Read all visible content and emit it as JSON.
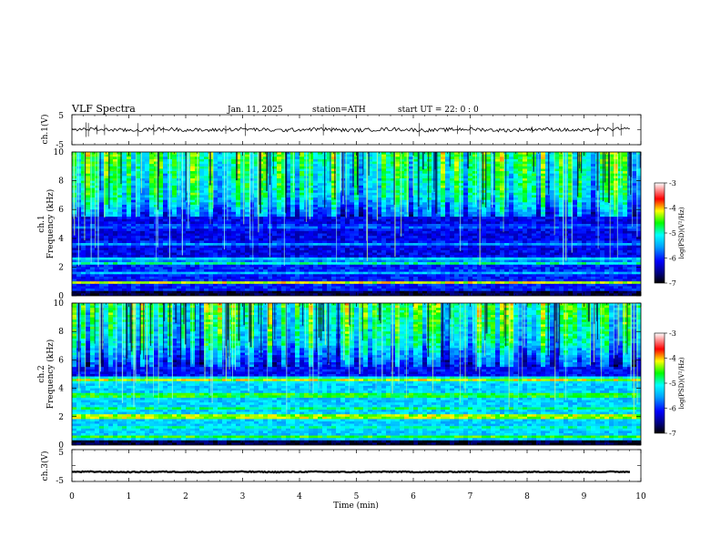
{
  "chart_data": {
    "type": "heatmap",
    "header": {
      "title": "VLF  Spectra",
      "date": "Jan. 11, 2025",
      "station": "station=ATH",
      "start_ut": "start  UT  =    22: 0   : 0"
    },
    "xlabel": "Time  (min)",
    "xlim": [
      0,
      10
    ],
    "x_ticks": [
      "0",
      "1",
      "2",
      "3",
      "4",
      "5",
      "6",
      "7",
      "8",
      "9",
      "10"
    ],
    "panels": [
      {
        "id": "ch1-waveform",
        "type": "line",
        "ylabel": "ch.1(V)",
        "ylim": [
          -5,
          5
        ],
        "y_ticks": [
          "5",
          "-5"
        ],
        "baseline": 0,
        "noise_amplitude": 0.6
      },
      {
        "id": "ch1-spectrogram",
        "type": "heatmap",
        "ylabel": "ch.1\nFrequency  (kHz)",
        "ylabel_line1": "ch.1",
        "ylabel_line2": "Frequency  (kHz)",
        "ylim": [
          0,
          10
        ],
        "y_ticks": [
          "0",
          "2",
          "4",
          "6",
          "8",
          "10"
        ],
        "colorbar": {
          "label": "log(PSD)(V²/Hz)",
          "range": [
            -7,
            -3
          ],
          "ticks": [
            "-3",
            "-4",
            "-5",
            "-6",
            "-7"
          ]
        },
        "notes": "Intense broadband noise above ~6 kHz with vertical sferic streaks; weak band near 3–5 kHz; horizontal lines near 0.5–2.5 kHz"
      },
      {
        "id": "ch2-spectrogram",
        "type": "heatmap",
        "ylabel": "ch.2\nFrequency  (kHz)",
        "ylabel_line1": "ch.2",
        "ylabel_line2": "Frequency  (kHz)",
        "ylim": [
          0,
          10
        ],
        "y_ticks": [
          "0",
          "2",
          "4",
          "6",
          "8",
          "10"
        ],
        "colorbar": {
          "label": "log(PSD)(V²/Hz)",
          "range": [
            -7,
            -3
          ],
          "ticks": [
            "-3",
            "-4",
            "-5",
            "-6",
            "-7"
          ]
        },
        "notes": "Broadband noise above ~6 kHz with vertical streaks; strong horizontal bands near 2.0, 3.5 and 4.6 kHz"
      },
      {
        "id": "ch3-waveform",
        "type": "line",
        "ylabel": "ch.3(V)",
        "ylim": [
          -5,
          5
        ],
        "y_ticks": [
          "5",
          "-5"
        ],
        "baseline": -2,
        "noise_amplitude": 0.15
      }
    ]
  }
}
